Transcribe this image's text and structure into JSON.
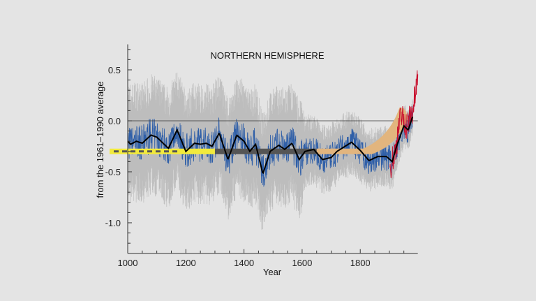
{
  "chart_data": {
    "type": "line",
    "title": "NORTHERN HEMISPHERE",
    "xlabel": "Year",
    "ylabel": "from the 1961–1990 average",
    "xlim": [
      1000,
      1998
    ],
    "ylim": [
      -1.3,
      0.75
    ],
    "x_ticks": [
      "1000",
      "1200",
      "1400",
      "1600",
      "1800"
    ],
    "y_ticks": [
      "0.5",
      "0.0",
      "-0.5",
      "-1.0"
    ],
    "grid": false,
    "reference_line": 0.0,
    "colors": {
      "uncertainty": "#bdbdbd",
      "reconstruction": "#2f5fa8",
      "smoothed": "#000000",
      "instrumental": "#c8102e",
      "stick_shaft_yellow": "#f2ea3c",
      "stick_shaft_dark": "#555555",
      "stick_blade": "#e2b57e"
    },
    "series": [
      {
        "key": "smoothed",
        "x": [
          1000,
          1010,
          1030,
          1050,
          1080,
          1100,
          1140,
          1170,
          1200,
          1230,
          1250,
          1270,
          1290,
          1315,
          1345,
          1375,
          1400,
          1420,
          1440,
          1465,
          1490,
          1520,
          1540,
          1565,
          1590,
          1610,
          1640,
          1670,
          1700,
          1720,
          1770,
          1800,
          1830,
          1860,
          1890,
          1910,
          1925,
          1950,
          1965,
          1980
        ],
        "y": [
          -0.2,
          -0.23,
          -0.2,
          -0.22,
          -0.14,
          -0.16,
          -0.27,
          -0.09,
          -0.3,
          -0.22,
          -0.23,
          -0.22,
          -0.25,
          -0.12,
          -0.38,
          -0.14,
          -0.2,
          -0.3,
          -0.23,
          -0.52,
          -0.3,
          -0.24,
          -0.28,
          -0.22,
          -0.38,
          -0.3,
          -0.28,
          -0.38,
          -0.36,
          -0.3,
          -0.21,
          -0.29,
          -0.39,
          -0.35,
          -0.35,
          -0.4,
          -0.25,
          -0.05,
          -0.09,
          0.04
        ]
      },
      {
        "key": "uncertainty_halfwidth",
        "x": [
          1000,
          1400,
          1600,
          1610,
          1900,
          1980
        ],
        "y": [
          0.5,
          0.5,
          0.5,
          0.3,
          0.25,
          0.15
        ]
      },
      {
        "key": "instrumental",
        "x": [
          1902,
          1920,
          1940,
          1960,
          1980,
          1990,
          1998
        ],
        "y": [
          -0.45,
          -0.3,
          0.05,
          -0.05,
          0.1,
          0.25,
          0.45
        ]
      }
    ]
  }
}
